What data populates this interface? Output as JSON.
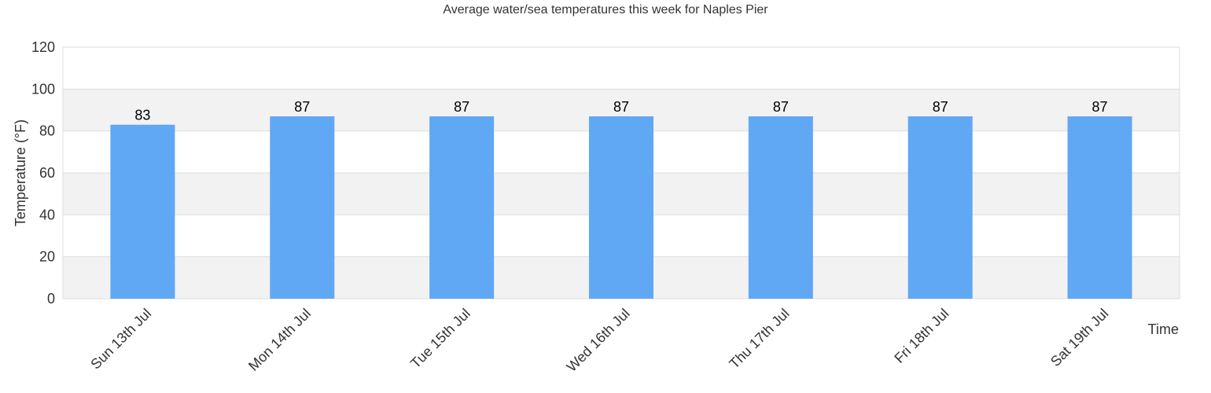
{
  "chart_data": {
    "type": "bar",
    "title": "Average water/sea temperatures this week for Naples Pier",
    "xlabel": "Time",
    "ylabel": "Temperature (°F)",
    "categories": [
      "Sun 13th Jul",
      "Mon 14th Jul",
      "Tue 15th Jul",
      "Wed 16th Jul",
      "Thu 17th Jul",
      "Fri 18th Jul",
      "Sat 19th Jul"
    ],
    "values": [
      83,
      87,
      87,
      87,
      87,
      87,
      87
    ],
    "ylim": [
      0,
      120
    ],
    "yticks": [
      0,
      20,
      40,
      60,
      80,
      100,
      120
    ],
    "grid": true,
    "legend": "none",
    "colors": {
      "bar": "#60a7f4",
      "band": "#f2f2f2",
      "grid": "#dddddd"
    }
  }
}
